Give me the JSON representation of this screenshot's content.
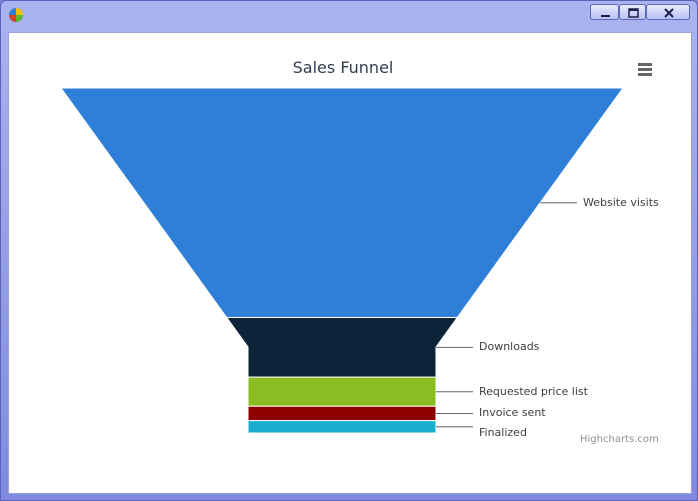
{
  "window": {
    "controls": {
      "minimize": "minimize-icon",
      "maximize": "maximize-icon",
      "close": "close-icon"
    },
    "app_icon": "pie-chart-icon"
  },
  "chart_data": {
    "type": "funnel",
    "title": "Sales Funnel",
    "categories": [
      "Website visits",
      "Downloads",
      "Requested price list",
      "Invoice sent",
      "Finalized"
    ],
    "values": [
      15654,
      4064,
      1987,
      976,
      846
    ],
    "colors": [
      "#2f7ed8",
      "#0d233a",
      "#8bbc21",
      "#910000",
      "#1aadce"
    ],
    "menu_icon": "hamburger-menu-icon",
    "credits": "Highcharts.com"
  }
}
